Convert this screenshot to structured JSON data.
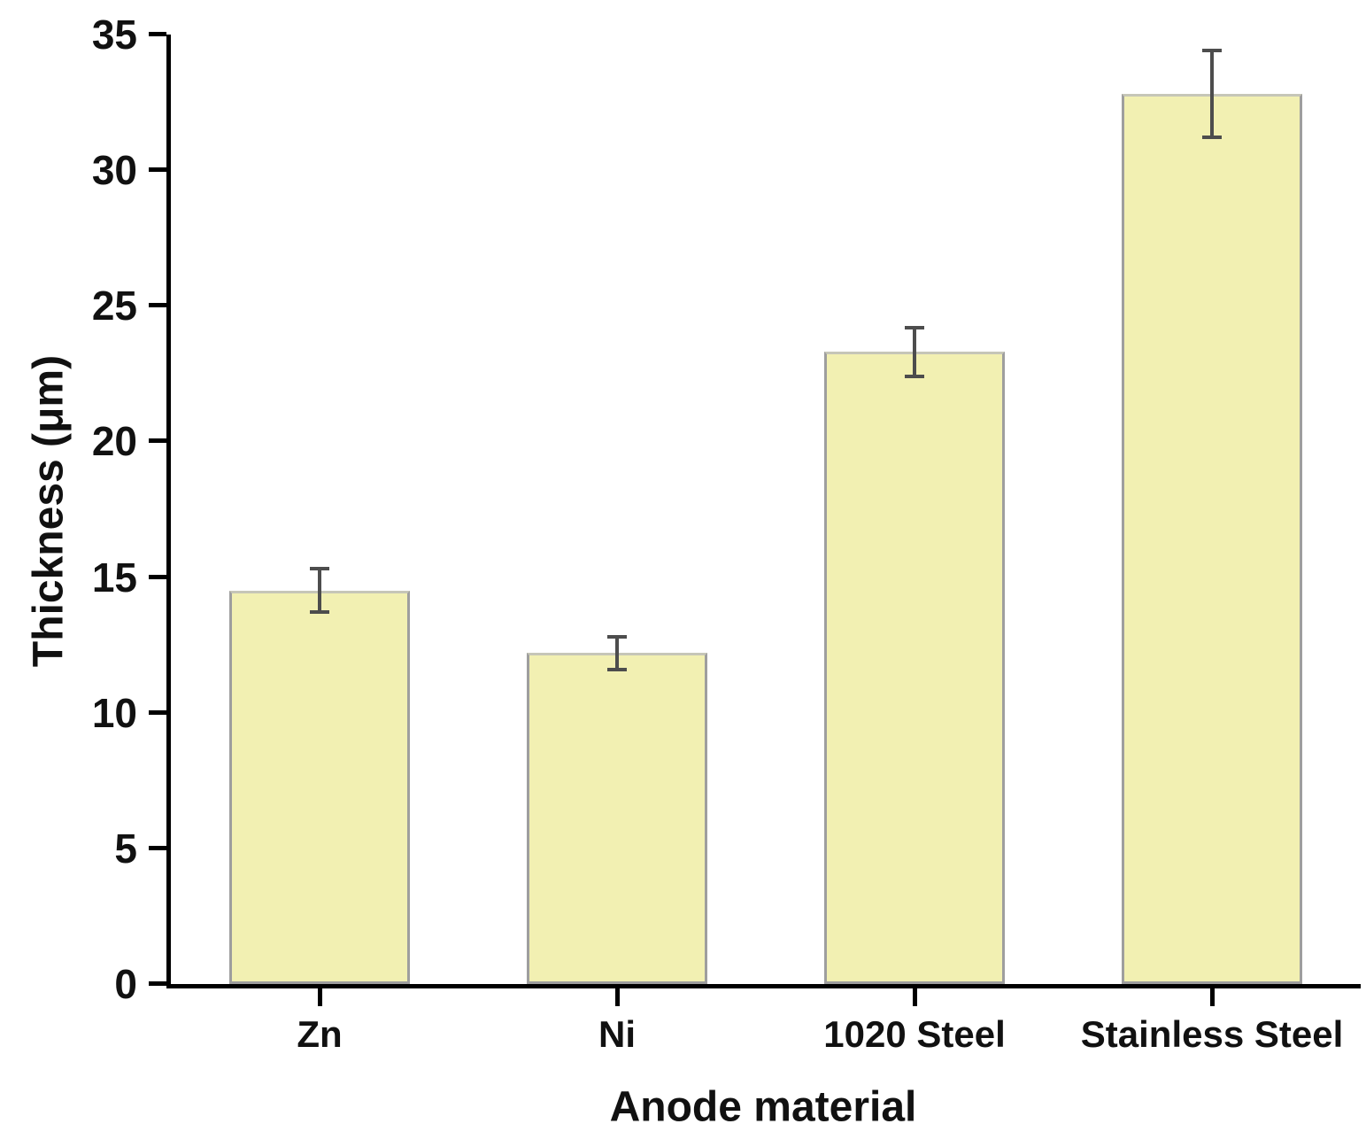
{
  "chart_data": {
    "type": "bar",
    "title": "",
    "xlabel": "Anode material",
    "ylabel": "Thickness (μm)",
    "categories": [
      "Zn",
      "Ni",
      "1020 Steel",
      "Stainless Steel"
    ],
    "values": [
      14.5,
      12.2,
      23.3,
      32.8
    ],
    "errors": [
      0.8,
      0.6,
      0.9,
      1.6
    ],
    "ylim": [
      0,
      35
    ],
    "yticks": [
      0,
      5,
      10,
      15,
      20,
      25,
      30,
      35
    ],
    "grid": false,
    "legend": false,
    "bar_width_fraction": 0.605,
    "colors": {
      "bar_fill": "#F2F0B2",
      "bar_edge": "#9E9E9E",
      "error_bar": "#4D4D4D",
      "axis": "#000000",
      "text": "#111111"
    }
  }
}
